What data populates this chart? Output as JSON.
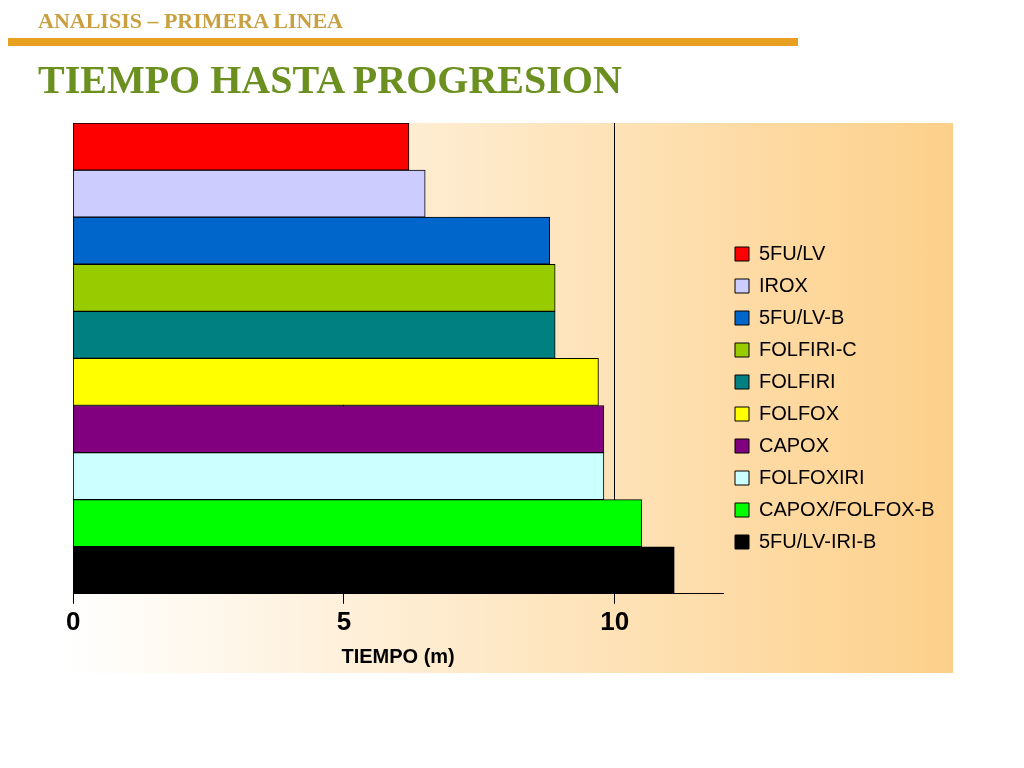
{
  "chart_data": {
    "type": "bar",
    "orientation": "horizontal",
    "title": "TIEMPO HASTA PROGRESION",
    "subtitle": "ANALISIS – PRIMERA LINEA",
    "xlabel": "TIEMPO (m)",
    "categories": [
      null,
      null,
      null,
      null,
      null,
      null,
      null,
      null,
      null,
      null
    ],
    "series": [
      {
        "name": "5FU/LV",
        "color": "#ff0000",
        "values": [
          6.2,
          null,
          null,
          null,
          null,
          null,
          null,
          null,
          null,
          null
        ]
      },
      {
        "name": "IROX",
        "color": "#ccccff",
        "values": [
          null,
          6.5,
          null,
          null,
          null,
          null,
          null,
          null,
          null,
          null
        ]
      },
      {
        "name": "5FU/LV-B",
        "color": "#0066cc",
        "values": [
          null,
          null,
          8.8,
          null,
          null,
          null,
          null,
          null,
          null,
          null
        ]
      },
      {
        "name": "FOLFIRI-C",
        "color": "#99cc00",
        "values": [
          null,
          null,
          null,
          8.9,
          null,
          null,
          null,
          null,
          null,
          null
        ]
      },
      {
        "name": "FOLFIRI",
        "color": "#008080",
        "values": [
          null,
          null,
          null,
          null,
          8.9,
          null,
          null,
          null,
          null,
          null
        ]
      },
      {
        "name": "FOLFOX",
        "color": "#ffff00",
        "values": [
          null,
          null,
          null,
          null,
          null,
          9.7,
          null,
          null,
          null,
          null
        ]
      },
      {
        "name": "CAPOX",
        "color": "#800080",
        "values": [
          null,
          null,
          null,
          null,
          null,
          null,
          9.8,
          null,
          null,
          null
        ]
      },
      {
        "name": "FOLFOXIRI",
        "color": "#ccffff",
        "values": [
          null,
          null,
          null,
          null,
          null,
          null,
          null,
          9.8,
          null,
          null
        ]
      },
      {
        "name": "CAPOX/FOLFOX-B",
        "color": "#00ff00",
        "values": [
          null,
          null,
          null,
          null,
          null,
          null,
          null,
          null,
          10.5,
          null
        ]
      },
      {
        "name": "5FU/LV-IRI-B",
        "color": "#000000",
        "values": [
          null,
          null,
          null,
          null,
          null,
          null,
          null,
          null,
          null,
          11.1
        ]
      }
    ],
    "xlim": [
      0,
      12
    ],
    "xticks": [
      0,
      5,
      10
    ],
    "grid": "x",
    "legend": "right",
    "tick_labels": "x"
  }
}
